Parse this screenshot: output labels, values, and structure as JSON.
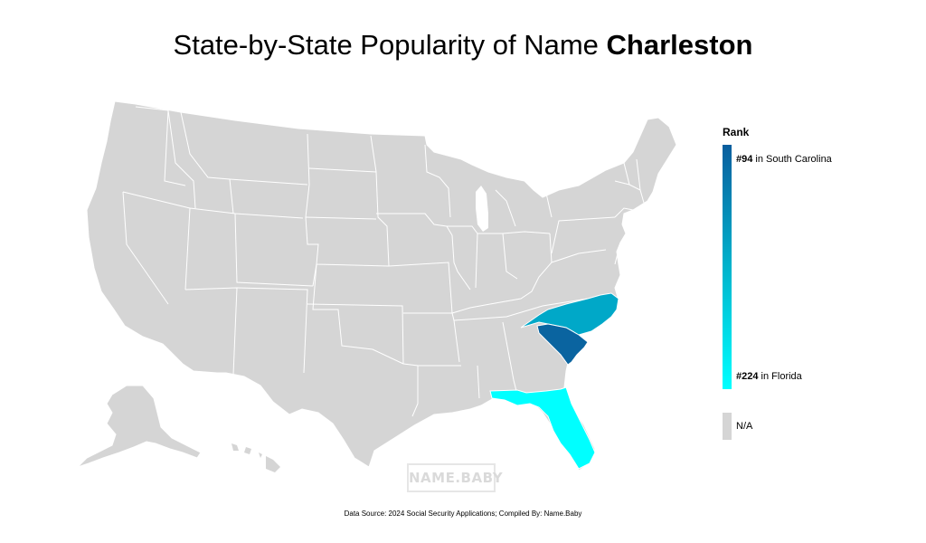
{
  "title": {
    "prefix": "State-by-State Popularity of Name ",
    "name": "Charleston"
  },
  "legend": {
    "title": "Rank",
    "top": {
      "rank": "#94",
      "suffix": " in South Carolina"
    },
    "bottom": {
      "rank": "#224",
      "suffix": " in Florida"
    },
    "na_label": "N/A",
    "gradient": [
      "#0a5e9e",
      "#00b3cc",
      "#00ffff"
    ]
  },
  "colors": {
    "no_data": "#d5d5d5",
    "state_border": "#ffffff",
    "south_carolina": "#0a64a0",
    "north_carolina": "#00a8c8",
    "florida": "#00ffff"
  },
  "states": [
    {
      "name": "South Carolina",
      "rank": 94
    },
    {
      "name": "North Carolina",
      "rank": null
    },
    {
      "name": "Florida",
      "rank": 224
    }
  ],
  "watermark": "NAME.BABY",
  "source": "Data Source: 2024 Social Security Applications; Compiled By: Name.Baby"
}
